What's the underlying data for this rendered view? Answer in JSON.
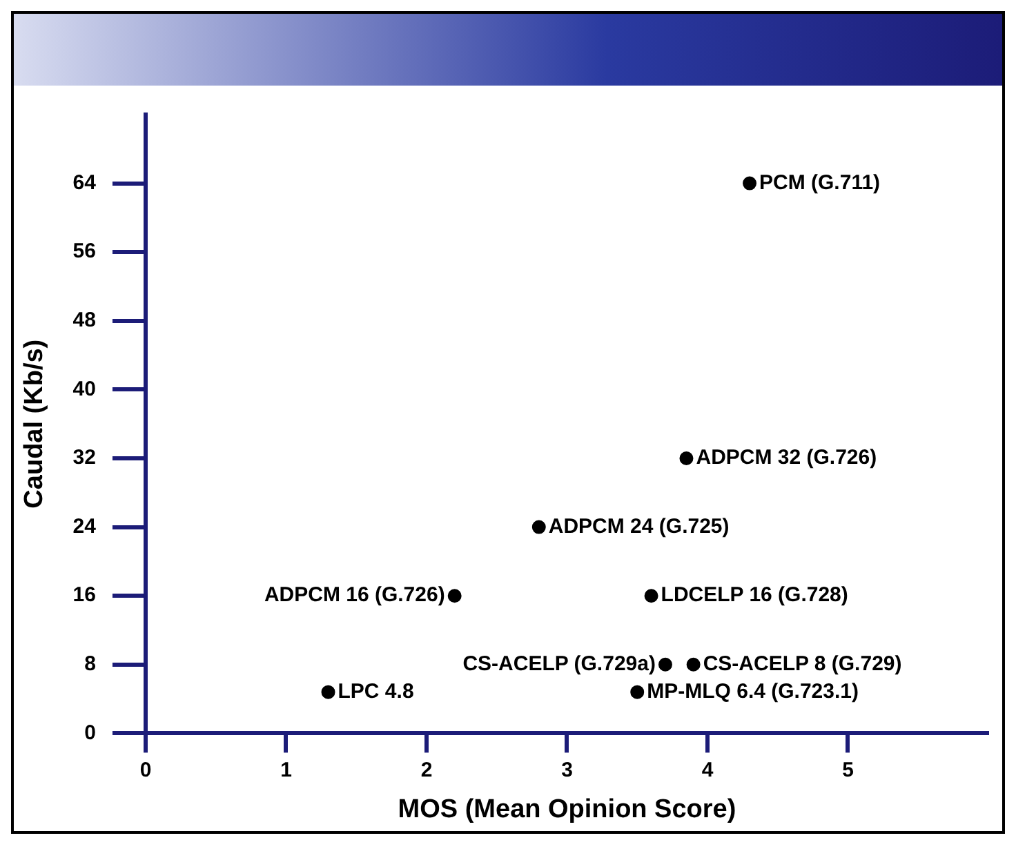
{
  "chart_data": {
    "type": "scatter",
    "xlabel": "MOS (Mean Opinion Score)",
    "ylabel": "Caudal (Kb/s)",
    "xlim": [
      0,
      6
    ],
    "xticks": [
      0,
      1,
      2,
      3,
      4,
      5
    ],
    "ylim": [
      0,
      72
    ],
    "yticks": [
      0,
      8,
      16,
      24,
      32,
      40,
      48,
      56,
      64
    ],
    "grid": false,
    "legend": false,
    "marker": "circle",
    "series": [
      {
        "color": "#000000",
        "x": [
          4.3,
          3.85,
          2.8,
          2.2,
          3.6,
          3.7,
          3.9,
          1.3,
          3.5
        ],
        "values": [
          64,
          32,
          24,
          16,
          16,
          8,
          8,
          4.8,
          4.8
        ]
      }
    ],
    "annotations": [
      {
        "text": "PCM (G.711)",
        "x": 4.3,
        "y": 64
      },
      {
        "text": "ADPCM 32 (G.726)",
        "x": 3.85,
        "y": 32
      },
      {
        "text": "ADPCM 24 (G.725)",
        "x": 2.8,
        "y": 24
      },
      {
        "text": "ADPCM 16 (G.726)",
        "x": 2.2,
        "y": 16
      },
      {
        "text": "LDCELP 16 (G.728)",
        "x": 3.6,
        "y": 16
      },
      {
        "text": "CS-ACELP (G.729a)",
        "x": 3.7,
        "y": 8
      },
      {
        "text": "CS-ACELP 8 (G.729)",
        "x": 3.9,
        "y": 8
      },
      {
        "text": "LPC 4.8",
        "x": 1.3,
        "y": 4.8
      },
      {
        "text": "MP-MLQ 6.4 (G.723.1)",
        "x": 3.5,
        "y": 4.8
      }
    ]
  }
}
